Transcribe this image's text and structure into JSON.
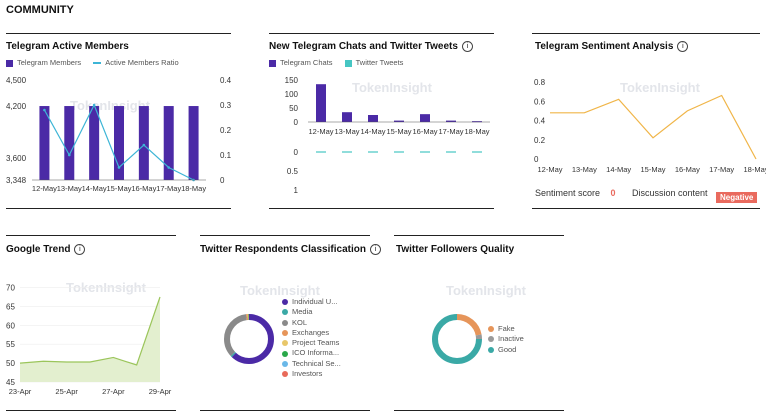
{
  "page": {
    "title": "COMMUNITY"
  },
  "watermark": "TokenInsight",
  "telegram_members": {
    "title": "Telegram Active Members",
    "legend": [
      "Telegram Members",
      "Active Members Ratio"
    ],
    "colors": {
      "bar": "#4b2aa6",
      "line": "#3db5d6"
    },
    "y_left_ticks": [
      "4,500",
      "4,200",
      "3,600",
      "3,348"
    ],
    "y_right_ticks": [
      "0.4",
      "0.3",
      "0.2",
      "0.1",
      "0"
    ],
    "x_ticks": [
      "12-May",
      "13-May",
      "14-May",
      "15-May",
      "16-May",
      "17-May",
      "18-May"
    ]
  },
  "chats_tweets": {
    "title": "New Telegram Chats and Twitter Tweets",
    "legend": [
      "Telegram Chats",
      "Twitter Tweets"
    ],
    "colors": {
      "bar": "#4b2aa6",
      "line": "#46c6c3"
    },
    "y_top_ticks": [
      "150",
      "100",
      "50",
      "0"
    ],
    "x_ticks": [
      "12-May",
      "13-May",
      "14-May",
      "15-May",
      "16-May",
      "17-May",
      "18-May"
    ],
    "y_bottom_ticks": [
      "0",
      "0.5",
      "1"
    ]
  },
  "sentiment": {
    "title": "Telegram Sentiment Analysis",
    "color": "#f0b548",
    "y_ticks": [
      "0.8",
      "0.6",
      "0.4",
      "0.2",
      "0"
    ],
    "x_ticks": [
      "12-May",
      "13-May",
      "14-May",
      "15-May",
      "16-May",
      "17-May",
      "18-May"
    ],
    "score_label": "Sentiment score",
    "score_value": "0",
    "discussion_label": "Discussion content",
    "discussion_value": "Negative"
  },
  "google_trend": {
    "title": "Google Trend",
    "color": "#9bc55b",
    "y_ticks": [
      "70",
      "65",
      "60",
      "55",
      "50",
      "45"
    ],
    "x_ticks": [
      "23-Apr",
      "25-Apr",
      "27-Apr",
      "29-Apr"
    ]
  },
  "twitter_respondents": {
    "title": "Twitter Respondents Classification",
    "legend": [
      {
        "label": "Individual U...",
        "color": "#4b2aa6"
      },
      {
        "label": "Media",
        "color": "#3aa9a6"
      },
      {
        "label": "KOL",
        "color": "#8a8a8a"
      },
      {
        "label": "Exchanges",
        "color": "#e6955a"
      },
      {
        "label": "Project Teams",
        "color": "#e8c76a"
      },
      {
        "label": "ICO Informa...",
        "color": "#2aa84a"
      },
      {
        "label": "Technical Se...",
        "color": "#6ab8e8"
      },
      {
        "label": "Investors",
        "color": "#e86a5a"
      }
    ]
  },
  "followers_quality": {
    "title": "Twitter Followers Quality",
    "legend": [
      {
        "label": "Fake",
        "color": "#e6955a"
      },
      {
        "label": "Inactive",
        "color": "#9a9a9a"
      },
      {
        "label": "Good",
        "color": "#3aa9a6"
      }
    ]
  },
  "chart_data": [
    {
      "type": "bar",
      "title": "Telegram Active Members",
      "categories": [
        "12-May",
        "13-May",
        "14-May",
        "15-May",
        "16-May",
        "17-May",
        "18-May"
      ],
      "series": [
        {
          "name": "Telegram Members",
          "type": "bar",
          "values": [
            4200,
            4200,
            4200,
            4200,
            4200,
            4200,
            4200
          ]
        },
        {
          "name": "Active Members Ratio",
          "type": "line",
          "values": [
            0.28,
            0.1,
            0.3,
            0.05,
            0.14,
            0.05,
            0.0
          ]
        }
      ],
      "ylim": [
        3348,
        4500
      ],
      "y2lim": [
        0,
        0.4
      ]
    },
    {
      "type": "bar",
      "title": "New Telegram Chats and Twitter Tweets",
      "categories": [
        "12-May",
        "13-May",
        "14-May",
        "15-May",
        "16-May",
        "17-May",
        "18-May"
      ],
      "series": [
        {
          "name": "Telegram Chats",
          "type": "bar",
          "values": [
            135,
            35,
            25,
            5,
            28,
            5,
            3
          ]
        },
        {
          "name": "Twitter Tweets",
          "type": "line",
          "values": [
            0,
            0,
            0,
            0,
            0,
            0,
            0
          ]
        }
      ],
      "ylim": [
        0,
        150
      ]
    },
    {
      "type": "line",
      "title": "Telegram Sentiment Analysis",
      "categories": [
        "12-May",
        "13-May",
        "14-May",
        "15-May",
        "16-May",
        "17-May",
        "18-May"
      ],
      "values": [
        0.48,
        0.48,
        0.62,
        0.22,
        0.5,
        0.66,
        0.0
      ],
      "ylim": [
        0,
        0.8
      ]
    },
    {
      "type": "area",
      "title": "Google Trend",
      "x": [
        "23-Apr",
        "24-Apr",
        "25-Apr",
        "26-Apr",
        "27-Apr",
        "28-Apr",
        "29-Apr"
      ],
      "values": [
        50,
        50.5,
        50.3,
        50.3,
        51.5,
        49.5,
        67.5
      ],
      "ylim": [
        45,
        72
      ]
    },
    {
      "type": "pie",
      "title": "Twitter Respondents Classification",
      "labels": [
        "Individual U...",
        "Media",
        "KOL",
        "Exchanges",
        "Project Teams",
        "ICO Informa...",
        "Technical Se...",
        "Investors"
      ],
      "values": [
        62,
        1,
        35,
        1,
        0.5,
        0.5,
        0,
        0
      ]
    },
    {
      "type": "pie",
      "title": "Twitter Followers Quality",
      "labels": [
        "Fake",
        "Inactive",
        "Good"
      ],
      "values": [
        22,
        3,
        75
      ]
    }
  ]
}
